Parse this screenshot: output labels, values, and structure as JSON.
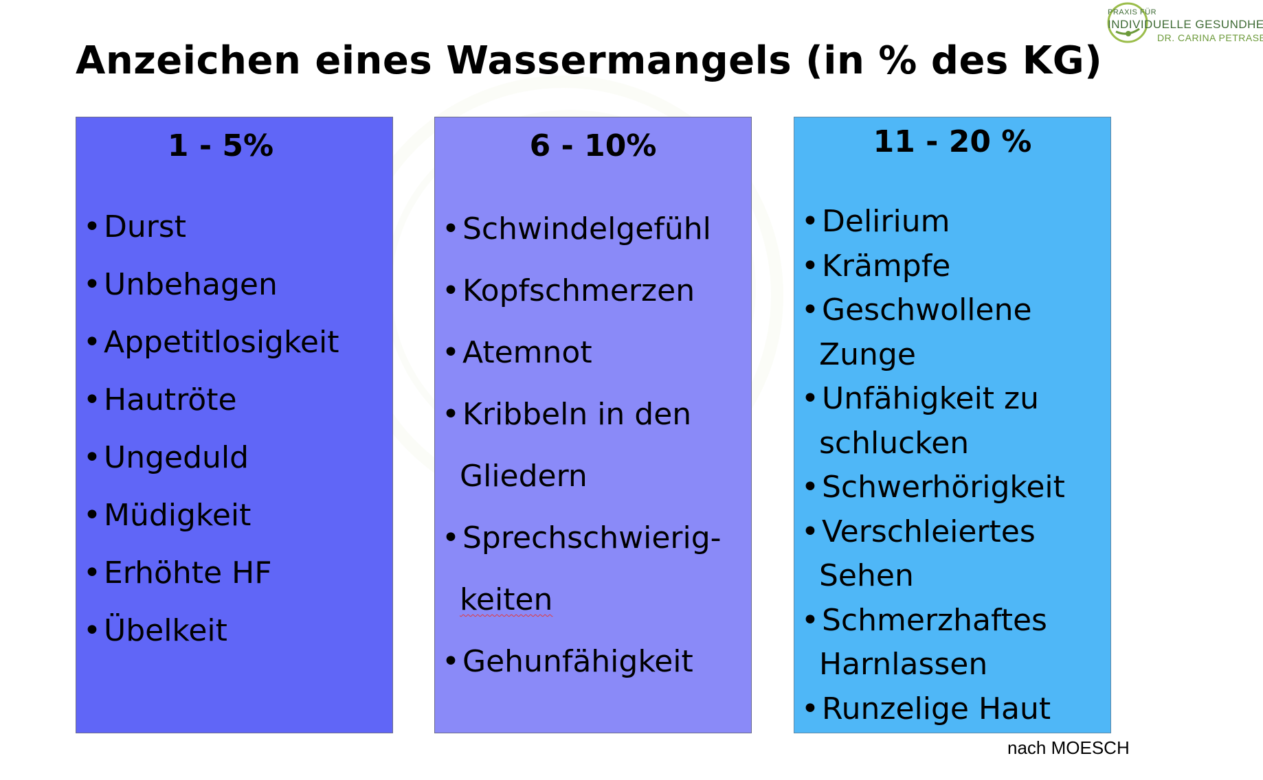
{
  "title": "Anzeichen eines Wassermangels (in % des KG)",
  "logo": {
    "line1": "PRAXIS FÜR",
    "line2": "INDIVIDUELLE GESUNDHEIT",
    "line3": "DR. CARINA PETRASEK"
  },
  "columns": [
    {
      "header": "1 - 5%",
      "color": "#6066f7",
      "items": [
        "Durst",
        "Unbehagen",
        "Appetitlosigkeit",
        "Hautröte",
        "Ungeduld",
        "Müdigkeit",
        "Erhöhte HF",
        "Übelkeit"
      ]
    },
    {
      "header": "6 - 10%",
      "color": "#8a8af8",
      "items": [
        "Schwindelgefühl",
        "Kopfschmerzen",
        "Atemnot",
        "Kribbeln in den",
        "Gliedern",
        "Sprechschwierig-",
        "keiten",
        "Gehunfähigkeit"
      ]
    },
    {
      "header": "11 - 20 %",
      "color": "#4fb7f7",
      "items": [
        "Delirium",
        "Krämpfe",
        "Geschwollene",
        "Zunge",
        "Unfähigkeit zu",
        "schlucken",
        "Schwerhörigkeit",
        "Verschleiertes",
        "Sehen",
        "Schmerzhaftes",
        "Harnlassen",
        "Runzelige Haut"
      ]
    }
  ],
  "source": "nach MOESCH"
}
